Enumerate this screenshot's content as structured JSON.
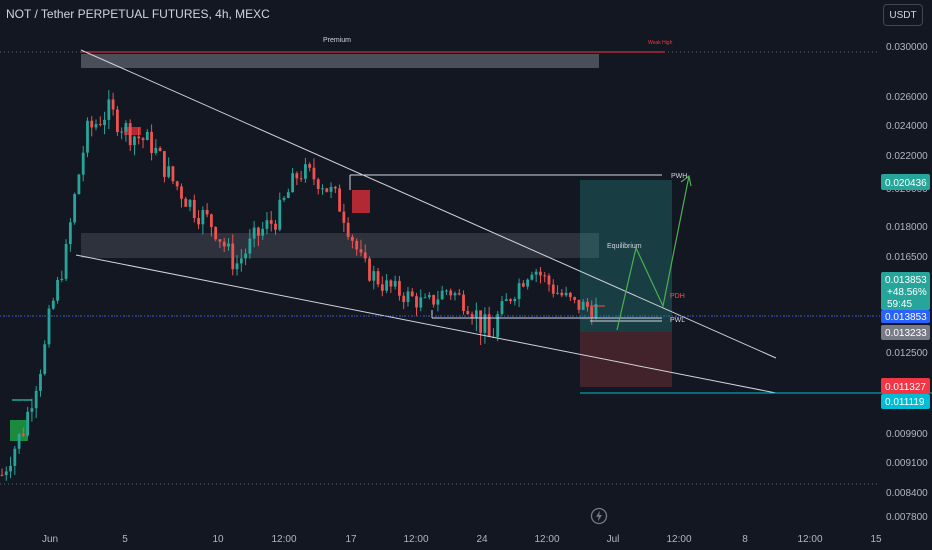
{
  "header": {
    "symbol_title": "NOT / Tether PERPETUAL FUTURES, 4h, MEXC",
    "currency_button": "USDT"
  },
  "colors": {
    "background": "#131722",
    "up": "#26a69a",
    "down": "#ef5350",
    "trendline": "#d1d4dc",
    "price_line": "#2962ff",
    "target_zone": "#26a69a",
    "stop_zone": "#ef5350"
  },
  "chart_data": {
    "type": "candlestick",
    "title": "NOT / Tether PERPETUAL FUTURES, 4h, MEXC",
    "timeframe": "4h",
    "price_axis": {
      "ticks": [
        "0.030000",
        "0.026000",
        "0.024000",
        "0.022000",
        "0.020000",
        "0.018000",
        "0.016500",
        "0.015000",
        "0.013500",
        "0.012500",
        "0.011500",
        "0.009900",
        "0.009100",
        "0.008400",
        "0.007800"
      ],
      "tick_values": [
        0.03,
        0.026,
        0.024,
        0.022,
        0.02,
        0.018,
        0.0165,
        0.015,
        0.0135,
        0.0125,
        0.0115,
        0.0099,
        0.0091,
        0.0084,
        0.0078
      ]
    },
    "time_axis": {
      "ticks": [
        "Jun",
        "5",
        "10",
        "12:00",
        "17",
        "12:00",
        "24",
        "12:00",
        "Jul",
        "12:00",
        "8",
        "12:00",
        "15"
      ]
    },
    "candles_approx": [
      {
        "date": "Jun 1",
        "close": 0.0088
      },
      {
        "date": "Jun 2",
        "close": 0.01
      },
      {
        "date": "Jun 3",
        "close": 0.0125
      },
      {
        "date": "Jun 4",
        "close": 0.0165
      },
      {
        "date": "Jun 5",
        "close": 0.0235
      },
      {
        "date": "Jun 6",
        "close": 0.025
      },
      {
        "date": "Jun 7",
        "close": 0.0235
      },
      {
        "date": "Jun 8",
        "close": 0.0228
      },
      {
        "date": "Jun 9",
        "close": 0.0205
      },
      {
        "date": "Jun 10",
        "close": 0.019
      },
      {
        "date": "Jun 11",
        "close": 0.018
      },
      {
        "date": "Jun 12",
        "close": 0.016
      },
      {
        "date": "Jun 13",
        "close": 0.0175
      },
      {
        "date": "Jun 14",
        "close": 0.0185
      },
      {
        "date": "Jun 15",
        "close": 0.021
      },
      {
        "date": "Jun 16",
        "close": 0.0205
      },
      {
        "date": "Jun 17",
        "close": 0.019
      },
      {
        "date": "Jun 18",
        "close": 0.016
      },
      {
        "date": "Jun 19",
        "close": 0.015
      },
      {
        "date": "Jun 20",
        "close": 0.0145
      },
      {
        "date": "Jun 21",
        "close": 0.014
      },
      {
        "date": "Jun 22",
        "close": 0.0148
      },
      {
        "date": "Jun 23",
        "close": 0.014
      },
      {
        "date": "Jun 24",
        "close": 0.0128
      },
      {
        "date": "Jun 25",
        "close": 0.0145
      },
      {
        "date": "Jun 26",
        "close": 0.016
      },
      {
        "date": "Jun 27",
        "close": 0.0148
      },
      {
        "date": "Jun 28",
        "close": 0.014
      },
      {
        "date": "Jun 29",
        "close": 0.01385
      }
    ],
    "price_labels": [
      {
        "id": "target",
        "text": "0.020436",
        "price": 0.020436,
        "color": "#26a69a"
      },
      {
        "id": "last",
        "text": "0.013853",
        "change": "+48.56%",
        "countdown": "59:45",
        "price": 0.013853,
        "color": "#26a69a"
      },
      {
        "id": "line",
        "text": "0.013853",
        "price": 0.013853,
        "color": "#2962ff"
      },
      {
        "id": "pwl",
        "text": "0.013233",
        "price": 0.013233,
        "color": "#787b86"
      },
      {
        "id": "stop",
        "text": "0.011327",
        "price": 0.011327,
        "color": "#f23645"
      },
      {
        "id": "target2",
        "text": "0.011119",
        "price": 0.011119,
        "color": "#00bcd4"
      }
    ],
    "annotations": {
      "premium": "Premium",
      "weekly_high": "Weak High",
      "pwh": "PWH",
      "equilibrium": "Equilibrium",
      "pdh": "PDH",
      "pwl": "PWL"
    },
    "grid": false,
    "legend": "none"
  }
}
